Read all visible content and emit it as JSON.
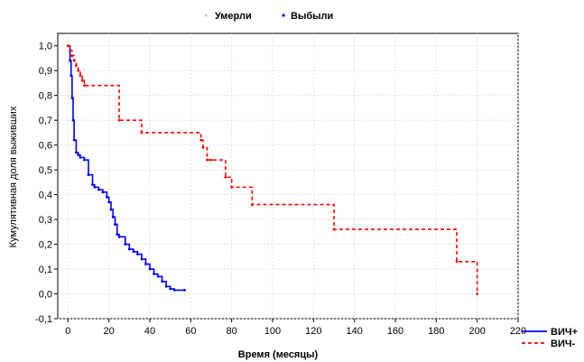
{
  "chart_data": {
    "type": "line",
    "chart_kind": "kaplan-meier",
    "xlabel": "Время (месяцы)",
    "ylabel": "Кумулятивная доля выживших",
    "xlim": [
      -5,
      220
    ],
    "ylim": [
      -0.1,
      1.05
    ],
    "xticks": [
      "0",
      "20",
      "40",
      "60",
      "80",
      "100",
      "120",
      "140",
      "160",
      "180",
      "200",
      "220"
    ],
    "yticks": [
      "-0,1",
      "0,0",
      "0,1",
      "0,2",
      "0,3",
      "0,4",
      "0,5",
      "0,6",
      "0,7",
      "0,8",
      "0,9",
      "1,0"
    ],
    "grid": true,
    "marker_legend": [
      {
        "label": "Умерли",
        "color": "#cccccc"
      },
      {
        "label": "Выбыли",
        "color": "#0000ff"
      }
    ],
    "legend_position": "bottom-right",
    "series": [
      {
        "name": "ВИЧ+",
        "color": "#0000ff",
        "dash": "solid",
        "x": [
          0,
          1,
          1.5,
          2,
          2.5,
          3,
          4,
          5,
          6,
          8,
          10,
          12,
          13,
          15,
          17,
          19,
          20,
          21,
          22,
          23,
          24,
          25,
          28,
          30,
          32,
          34,
          36,
          38,
          40,
          42,
          44,
          46,
          48,
          50,
          52,
          57
        ],
        "y": [
          1.0,
          0.94,
          0.88,
          0.79,
          0.7,
          0.62,
          0.57,
          0.56,
          0.55,
          0.54,
          0.48,
          0.44,
          0.43,
          0.42,
          0.41,
          0.39,
          0.37,
          0.34,
          0.31,
          0.28,
          0.24,
          0.23,
          0.2,
          0.18,
          0.17,
          0.16,
          0.14,
          0.12,
          0.1,
          0.08,
          0.07,
          0.05,
          0.03,
          0.02,
          0.015,
          0.015
        ]
      },
      {
        "name": "ВИЧ-",
        "color": "#ff0000",
        "dash": "dashed",
        "x": [
          0,
          1,
          2,
          3,
          4,
          5,
          6,
          7,
          8,
          25,
          36,
          65,
          66,
          68,
          70,
          77,
          80,
          90,
          130,
          190,
          200
        ],
        "y": [
          1.0,
          0.98,
          0.96,
          0.94,
          0.92,
          0.9,
          0.88,
          0.86,
          0.84,
          0.7,
          0.65,
          0.62,
          0.59,
          0.54,
          0.54,
          0.47,
          0.43,
          0.36,
          0.26,
          0.13,
          0.0
        ]
      }
    ]
  }
}
